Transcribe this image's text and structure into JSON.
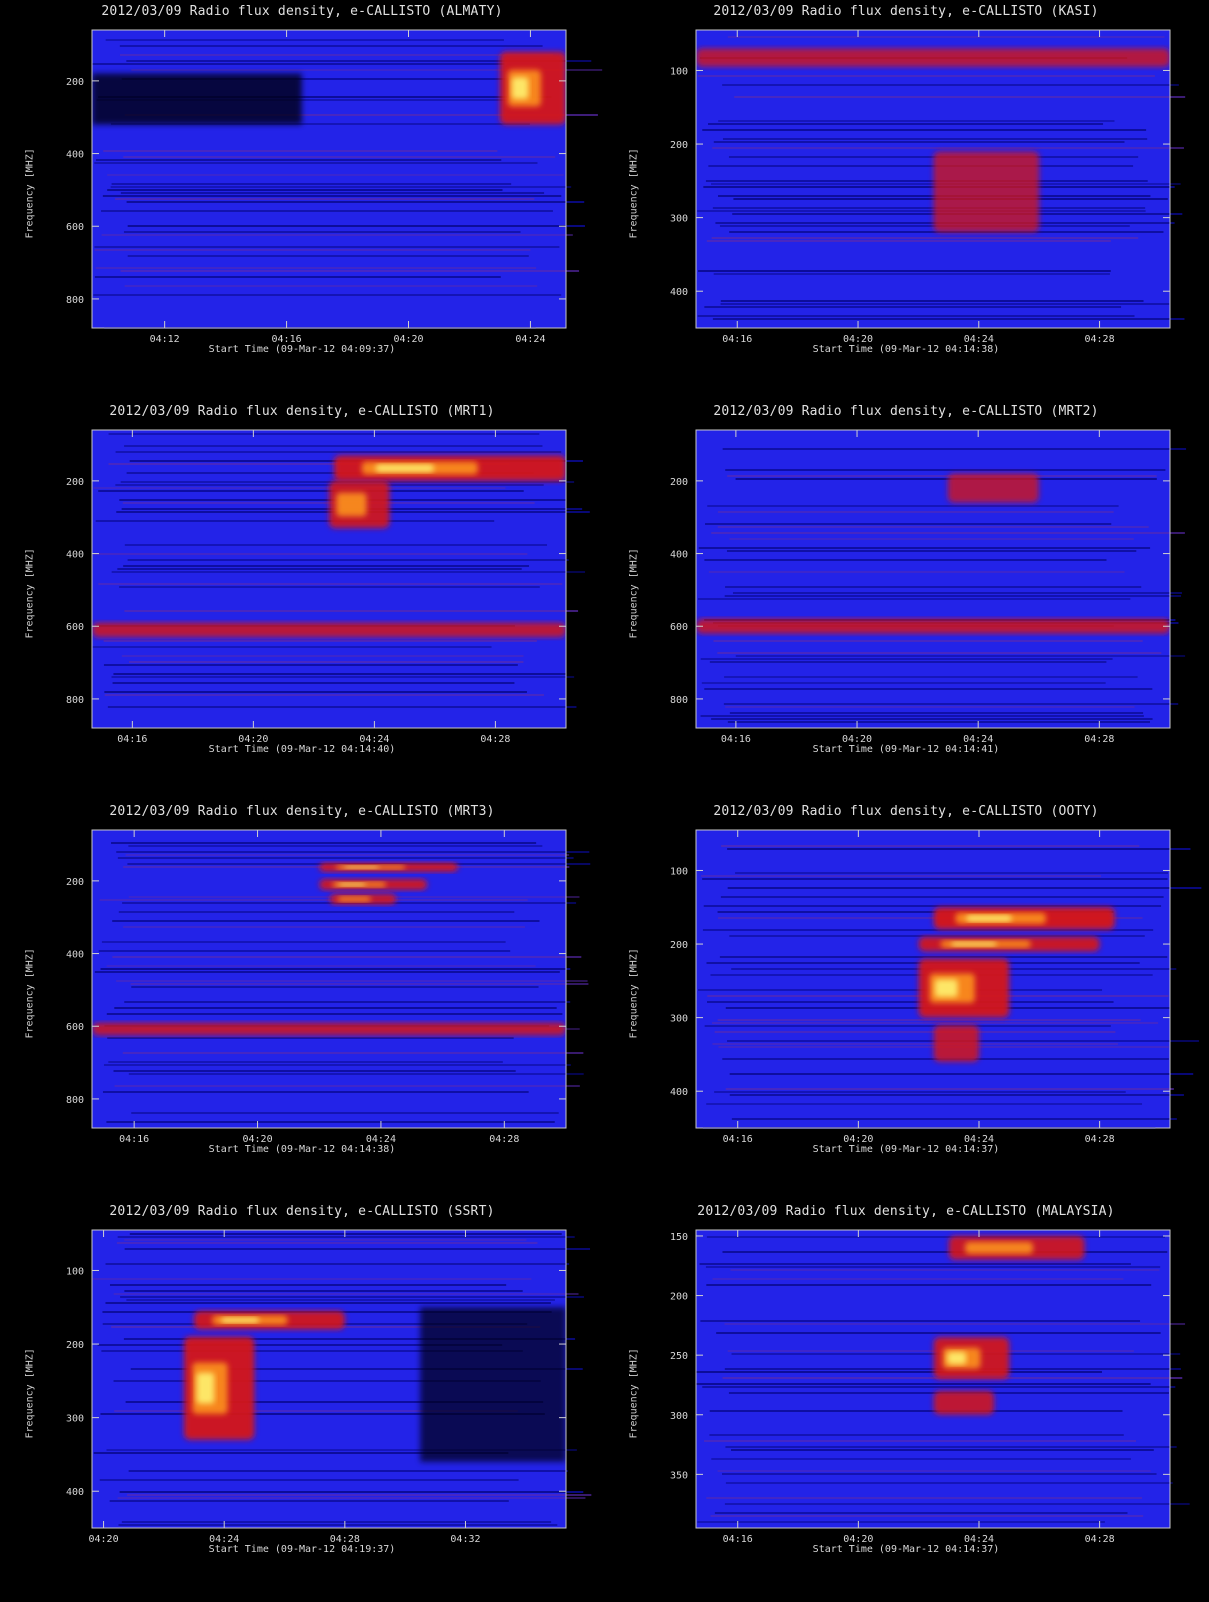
{
  "chart_data": [
    {
      "type": "heatmap",
      "title": "2012/03/09  Radio flux density, e-CALLISTO (ALMATY)",
      "xlabel": "Start Time (09-Mar-12 04:09:37)",
      "ylabel": "Frequency [MHZ]",
      "xlim": [
        "04:09:37",
        "04:25:10"
      ],
      "ylim": [
        880,
        60
      ],
      "xticks": [
        "04:12",
        "04:16",
        "04:20",
        "04:24"
      ],
      "yticks": [
        200,
        400,
        600,
        800
      ],
      "colormap": [
        "#000000",
        "#0000ff",
        "#ff0000",
        "#ffff66"
      ],
      "bursts": [
        {
          "label": "type III group",
          "time": [
            "04:23:00",
            "04:25:10"
          ],
          "freq": [
            120,
            320
          ],
          "intensity": 0.95
        },
        {
          "label": "absorption band",
          "time": [
            "04:09:37",
            "04:16:30"
          ],
          "freq": [
            180,
            320
          ],
          "intensity": -0.8
        }
      ]
    },
    {
      "type": "heatmap",
      "title": "2012/03/09  Radio flux density, e-CALLISTO (KASI)",
      "xlabel": "Start Time (09-Mar-12 04:14:38)",
      "ylabel": "Frequency [MHZ]",
      "xlim": [
        "04:14:38",
        "04:30:20"
      ],
      "ylim": [
        450,
        45
      ],
      "xticks": [
        "04:16",
        "04:20",
        "04:24",
        "04:28"
      ],
      "yticks": [
        100,
        200,
        300,
        400
      ],
      "colormap": [
        "#000000",
        "#0000ff",
        "#ff0000",
        "#ffff66"
      ],
      "bursts": [
        {
          "label": "periodic interference",
          "time": [
            "04:14:38",
            "04:30:20"
          ],
          "freq": [
            70,
            95
          ],
          "intensity": 0.6
        },
        {
          "label": "burst",
          "time": [
            "04:22:30",
            "04:26:00"
          ],
          "freq": [
            210,
            320
          ],
          "intensity": 0.5
        }
      ]
    },
    {
      "type": "heatmap",
      "title": "2012/03/09  Radio flux density, e-CALLISTO (MRT1)",
      "xlabel": "Start Time (09-Mar-12 04:14:40)",
      "ylabel": "Frequency [MHZ]",
      "xlim": [
        "04:14:40",
        "04:30:20"
      ],
      "ylim": [
        880,
        60
      ],
      "xticks": [
        "04:16",
        "04:20",
        "04:24",
        "04:28"
      ],
      "yticks": [
        200,
        400,
        600,
        800
      ],
      "colormap": [
        "#000000",
        "#0000ff",
        "#ff0000",
        "#ffff66"
      ],
      "bursts": [
        {
          "label": "type II lane",
          "time": [
            "04:22:40",
            "04:30:20"
          ],
          "freq": [
            130,
            200
          ],
          "intensity": 0.95
        },
        {
          "label": "burst core",
          "time": [
            "04:22:30",
            "04:24:30"
          ],
          "freq": [
            200,
            330
          ],
          "intensity": 0.85
        },
        {
          "label": "interference",
          "time": [
            "04:14:40",
            "04:30:20"
          ],
          "freq": [
            590,
            630
          ],
          "intensity": 0.7
        }
      ]
    },
    {
      "type": "heatmap",
      "title": "2012/03/09  Radio flux density, e-CALLISTO (MRT2)",
      "xlabel": "Start Time (09-Mar-12 04:14:41)",
      "ylabel": "Frequency [MHZ]",
      "xlim": [
        "04:14:41",
        "04:30:20"
      ],
      "ylim": [
        880,
        60
      ],
      "xticks": [
        "04:16",
        "04:20",
        "04:24",
        "04:28"
      ],
      "yticks": [
        200,
        400,
        600,
        800
      ],
      "colormap": [
        "#000000",
        "#0000ff",
        "#ff0000",
        "#ffff66"
      ],
      "bursts": [
        {
          "label": "faint burst",
          "time": [
            "04:23:00",
            "04:26:00"
          ],
          "freq": [
            180,
            260
          ],
          "intensity": 0.55
        },
        {
          "label": "interference",
          "time": [
            "04:14:41",
            "04:30:20"
          ],
          "freq": [
            580,
            620
          ],
          "intensity": 0.7
        }
      ]
    },
    {
      "type": "heatmap",
      "title": "2012/03/09  Radio flux density, e-CALLISTO (MRT3)",
      "xlabel": "Start Time (09-Mar-12 04:14:38)",
      "ylabel": "Frequency [MHZ]",
      "xlim": [
        "04:14:38",
        "04:30:00"
      ],
      "ylim": [
        880,
        60
      ],
      "xticks": [
        "04:16",
        "04:20",
        "04:24",
        "04:28"
      ],
      "yticks": [
        200,
        400,
        600,
        800
      ],
      "colormap": [
        "#000000",
        "#0000ff",
        "#ff0000",
        "#ffff66"
      ],
      "bursts": [
        {
          "label": "lane 1",
          "time": [
            "04:22:00",
            "04:26:30"
          ],
          "freq": [
            150,
            175
          ],
          "intensity": 0.95
        },
        {
          "label": "lane 2",
          "time": [
            "04:22:00",
            "04:25:30"
          ],
          "freq": [
            195,
            225
          ],
          "intensity": 0.9
        },
        {
          "label": "lane 3",
          "time": [
            "04:22:20",
            "04:24:30"
          ],
          "freq": [
            235,
            265
          ],
          "intensity": 0.8
        },
        {
          "label": "interference",
          "time": [
            "04:14:38",
            "04:30:00"
          ],
          "freq": [
            590,
            625
          ],
          "intensity": 0.7
        }
      ]
    },
    {
      "type": "heatmap",
      "title": "2012/03/09  Radio flux density, e-CALLISTO (OOTY)",
      "xlabel": "Start Time (09-Mar-12 04:14:37)",
      "ylabel": "Frequency [MHZ]",
      "xlim": [
        "04:14:37",
        "04:30:20"
      ],
      "ylim": [
        450,
        45
      ],
      "xticks": [
        "04:16",
        "04:20",
        "04:24",
        "04:28"
      ],
      "yticks": [
        100,
        200,
        300,
        400
      ],
      "colormap": [
        "#000000",
        "#0000ff",
        "#ff0000",
        "#ffff66"
      ],
      "bursts": [
        {
          "label": "lane 1",
          "time": [
            "04:22:30",
            "04:28:30"
          ],
          "freq": [
            150,
            180
          ],
          "intensity": 1.0
        },
        {
          "label": "lane 2",
          "time": [
            "04:22:00",
            "04:28:00"
          ],
          "freq": [
            190,
            210
          ],
          "intensity": 0.9
        },
        {
          "label": "burst core",
          "time": [
            "04:22:00",
            "04:25:00"
          ],
          "freq": [
            220,
            300
          ],
          "intensity": 0.95
        },
        {
          "label": "tail",
          "time": [
            "04:22:30",
            "04:24:00"
          ],
          "freq": [
            310,
            360
          ],
          "intensity": 0.7
        }
      ]
    },
    {
      "type": "heatmap",
      "title": "2012/03/09  Radio flux density, e-CALLISTO (SSRT)",
      "xlabel": "Start Time (09-Mar-12 04:19:37)",
      "ylabel": "Frequency [MHZ]",
      "xlim": [
        "04:19:37",
        "04:35:20"
      ],
      "ylim": [
        450,
        45
      ],
      "xticks": [
        "04:20",
        "04:24",
        "04:28",
        "04:32"
      ],
      "yticks": [
        100,
        200,
        300,
        400
      ],
      "colormap": [
        "#000000",
        "#0000ff",
        "#ff0000",
        "#ffff66"
      ],
      "bursts": [
        {
          "label": "upper lane",
          "time": [
            "04:23:00",
            "04:28:00"
          ],
          "freq": [
            155,
            180
          ],
          "intensity": 0.9
        },
        {
          "label": "burst core",
          "time": [
            "04:22:40",
            "04:25:00"
          ],
          "freq": [
            190,
            330
          ],
          "intensity": 0.95
        },
        {
          "label": "absorption",
          "time": [
            "04:30:30",
            "04:35:20"
          ],
          "freq": [
            150,
            360
          ],
          "intensity": -0.7
        }
      ]
    },
    {
      "type": "heatmap",
      "title": "2012/03/09  Radio flux density, e-CALLISTO (MALAYSIA)",
      "xlabel": "Start Time (09-Mar-12 04:14:37)",
      "ylabel": "Frequency [MHZ]",
      "xlim": [
        "04:14:37",
        "04:30:20"
      ],
      "ylim": [
        395,
        145
      ],
      "xticks": [
        "04:16",
        "04:20",
        "04:24",
        "04:28"
      ],
      "yticks": [
        150,
        200,
        250,
        300,
        350
      ],
      "colormap": [
        "#000000",
        "#0000ff",
        "#ff0000",
        "#ffff66"
      ],
      "bursts": [
        {
          "label": "upper lane",
          "time": [
            "04:23:00",
            "04:27:30"
          ],
          "freq": [
            150,
            170
          ],
          "intensity": 0.85
        },
        {
          "label": "burst core",
          "time": [
            "04:22:30",
            "04:25:00"
          ],
          "freq": [
            235,
            270
          ],
          "intensity": 0.9
        },
        {
          "label": "lower burst",
          "time": [
            "04:22:30",
            "04:24:30"
          ],
          "freq": [
            280,
            300
          ],
          "intensity": 0.75
        }
      ]
    }
  ]
}
